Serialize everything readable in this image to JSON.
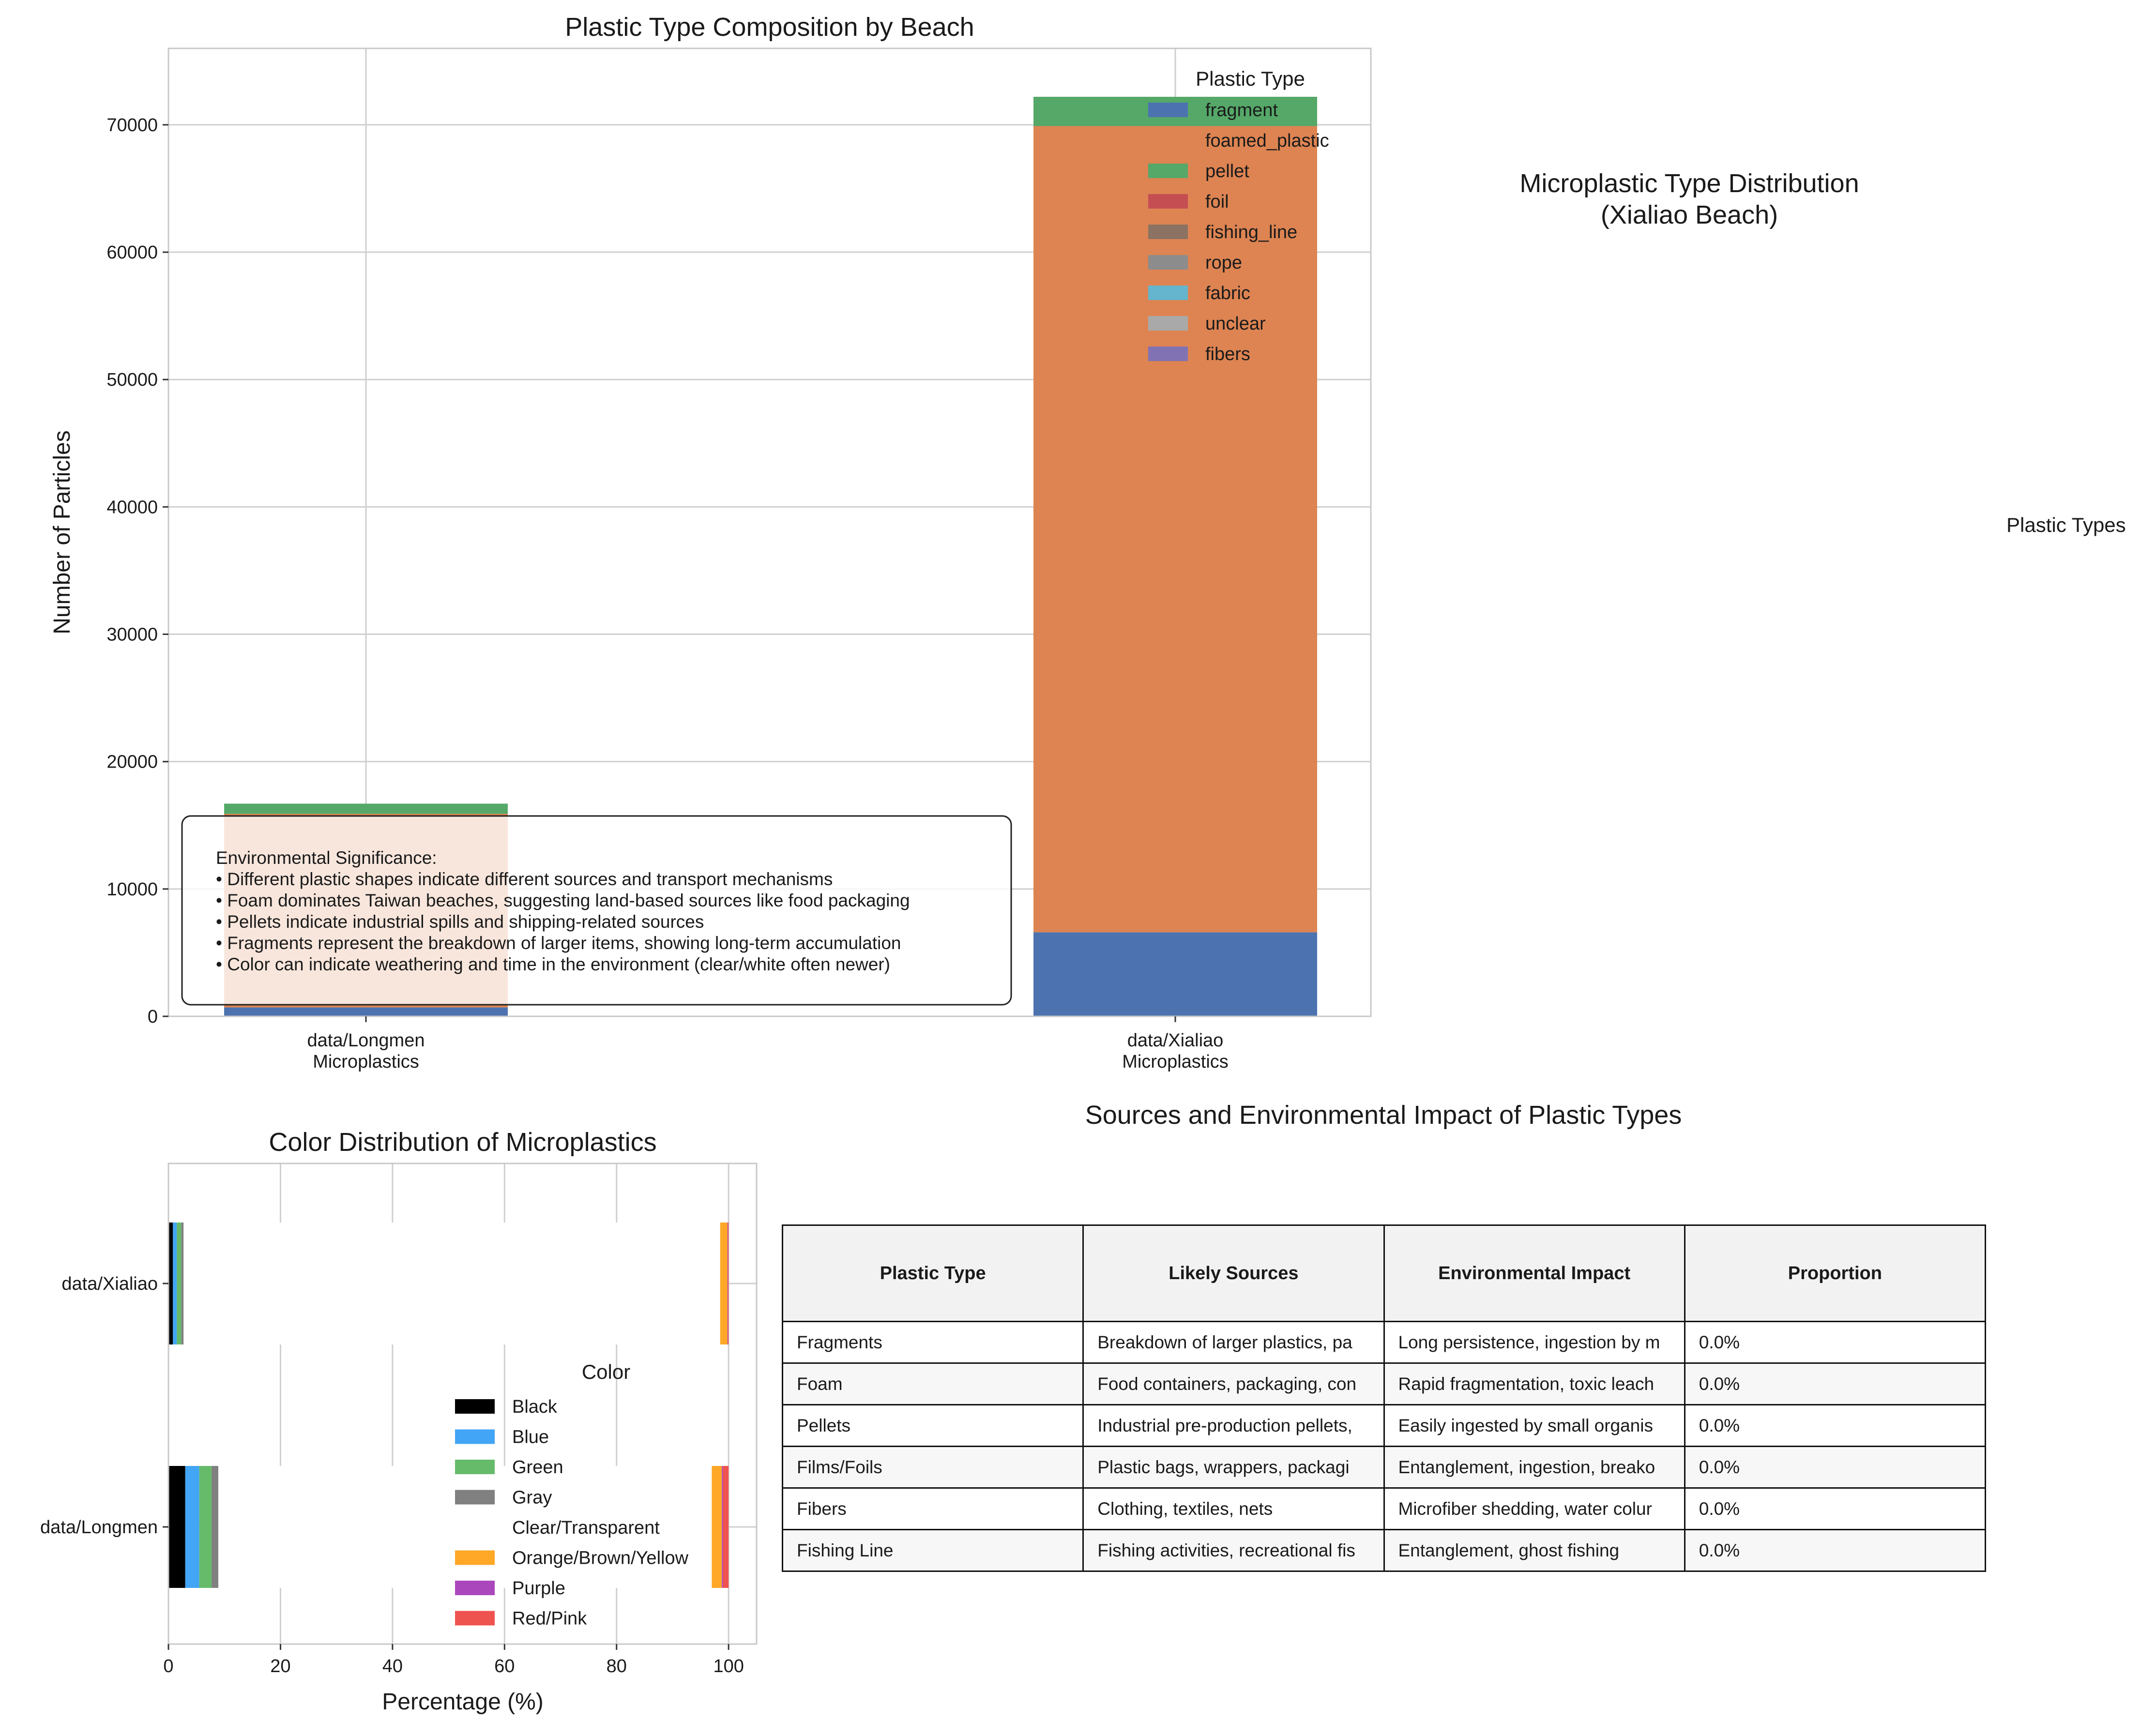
{
  "colors": {
    "fragment": "#4c72b0",
    "foamed_plastic": "#dd8452",
    "pellet": "#55a868",
    "foil": "#c44e52",
    "fishing_line": "#8c7262",
    "rope": "#8c8c8c",
    "fabric": "#64b5cd",
    "unclear": "#a9a9a9",
    "fibers": "#8172b3",
    "black": "#000000",
    "blue": "#42a5f5",
    "green": "#66bb6a",
    "gray": "#808080",
    "clear": "#ffffff",
    "orange": "#ffa726",
    "purple": "#ab47bc",
    "red": "#ef5350"
  },
  "pie": {
    "title_line1": "Microplastic Type Distribution",
    "title_line2": "(Xialiao Beach)",
    "legend_title": "Plastic Types"
  },
  "note": {
    "lines": [
      "Environmental Significance:",
      "• Different plastic shapes indicate different sources and transport mechanisms",
      "• Foam dominates Taiwan beaches, suggesting land-based sources like food packaging",
      "• Pellets indicate industrial spills and shipping-related sources",
      "• Fragments represent the breakdown of larger items, showing long-term accumulation",
      "• Color can indicate weathering and time in the environment (clear/white often newer)"
    ]
  },
  "table": {
    "title": "Sources and Environmental Impact of Plastic Types",
    "headers": [
      "Plastic Type",
      "Likely Sources",
      "Environmental Impact",
      "Proportion"
    ],
    "rows": [
      [
        "Fragments",
        "Breakdown of larger plastics, pa",
        "Long persistence, ingestion by m",
        "0.0%"
      ],
      [
        "Foam",
        "Food containers, packaging, con",
        "Rapid fragmentation, toxic leach",
        "0.0%"
      ],
      [
        "Pellets",
        "Industrial pre-production pellets,",
        "Easily ingested by small organis",
        "0.0%"
      ],
      [
        "Films/Foils",
        "Plastic bags, wrappers, packagi",
        "Entanglement, ingestion, breako",
        "0.0%"
      ],
      [
        "Fibers",
        "Clothing, textiles, nets",
        "Microfiber shedding, water colur",
        "0.0%"
      ],
      [
        "Fishing Line",
        "Fishing activities, recreational fis",
        "Entanglement, ghost fishing",
        "0.0%"
      ]
    ]
  },
  "chart_data": [
    {
      "type": "bar",
      "stacked": true,
      "title": "Plastic Type Composition by Beach",
      "xlabel": "",
      "ylabel": "Number of Particles",
      "categories": [
        "data/Longmen\nMicroplastics",
        "data/Xialiao\nMicroplastics"
      ],
      "ylim": [
        0,
        76000
      ],
      "yticks": [
        0,
        10000,
        20000,
        30000,
        40000,
        50000,
        60000,
        70000
      ],
      "grid": true,
      "legend_title": "Plastic Type",
      "legend_position": "top-right",
      "series": [
        {
          "name": "fragment",
          "color_key": "fragment",
          "values": [
            700,
            6600
          ]
        },
        {
          "name": "foamed_plastic",
          "color_key": "foamed_plastic",
          "values": [
            15200,
            63300
          ]
        },
        {
          "name": "pellet",
          "color_key": "pellet",
          "values": [
            800,
            2300
          ]
        },
        {
          "name": "foil",
          "color_key": "foil",
          "values": [
            0,
            0
          ]
        },
        {
          "name": "fishing_line",
          "color_key": "fishing_line",
          "values": [
            0,
            0
          ]
        },
        {
          "name": "rope",
          "color_key": "rope",
          "values": [
            0,
            0
          ]
        },
        {
          "name": "fabric",
          "color_key": "fabric",
          "values": [
            0,
            0
          ]
        },
        {
          "name": "unclear",
          "color_key": "unclear",
          "values": [
            0,
            0
          ]
        },
        {
          "name": "fibers",
          "color_key": "fibers",
          "values": [
            0,
            0
          ]
        }
      ]
    },
    {
      "type": "bar",
      "orientation": "horizontal",
      "stacked": true,
      "title": "Color Distribution of Microplastics",
      "xlabel": "Percentage (%)",
      "ylabel": "",
      "categories": [
        "data/Longmen",
        "data/Xialiao"
      ],
      "xlim": [
        0,
        105
      ],
      "xticks": [
        0,
        20,
        40,
        60,
        80,
        100
      ],
      "grid": true,
      "legend_title": "Color",
      "legend_position": "center-right",
      "series": [
        {
          "name": "Black",
          "color_key": "black",
          "values": [
            3.0,
            0.8
          ]
        },
        {
          "name": "Blue",
          "color_key": "blue",
          "values": [
            2.5,
            0.7
          ]
        },
        {
          "name": "Green",
          "color_key": "green",
          "values": [
            2.2,
            0.8
          ]
        },
        {
          "name": "Gray",
          "color_key": "gray",
          "values": [
            1.2,
            0.4
          ]
        },
        {
          "name": "Clear/Transparent",
          "color_key": "clear",
          "values": [
            88.1,
            95.8
          ]
        },
        {
          "name": "Orange/Brown/Yellow",
          "color_key": "orange",
          "values": [
            1.8,
            1.3
          ]
        },
        {
          "name": "Purple",
          "color_key": "purple",
          "values": [
            0.2,
            0.1
          ]
        },
        {
          "name": "Red/Pink",
          "color_key": "red",
          "values": [
            1.0,
            0.1
          ]
        }
      ]
    }
  ]
}
